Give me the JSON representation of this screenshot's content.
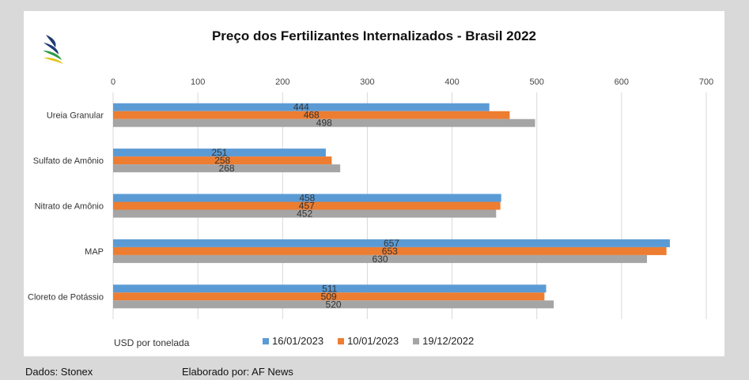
{
  "chart_data": {
    "type": "bar",
    "orientation": "horizontal",
    "title": "Preço dos Fertilizantes Internalizados  - Brasil 2022",
    "categories": [
      "Ureia Granular",
      "Sulfato de Amônio",
      "Nitrato de Amônio",
      "MAP",
      "Cloreto de Potássio"
    ],
    "series": [
      {
        "name": "16/01/2023",
        "color": "#5b9bd5",
        "values": [
          444,
          251,
          458,
          657,
          511
        ]
      },
      {
        "name": "10/01/2023",
        "color": "#ed7d31",
        "values": [
          468,
          258,
          457,
          653,
          509
        ]
      },
      {
        "name": "19/12/2022",
        "color": "#a5a5a5",
        "values": [
          498,
          268,
          452,
          630,
          520
        ]
      }
    ],
    "xlim": [
      0,
      700
    ],
    "xticks": [
      0,
      100,
      200,
      300,
      400,
      500,
      600,
      700
    ],
    "xlabel": "USD por tonelada",
    "grid": true,
    "axis_position": "top",
    "legend_position": "bottom"
  },
  "footer": {
    "source": "Dados: Stonex",
    "author": "Elaborado por: AF News"
  }
}
